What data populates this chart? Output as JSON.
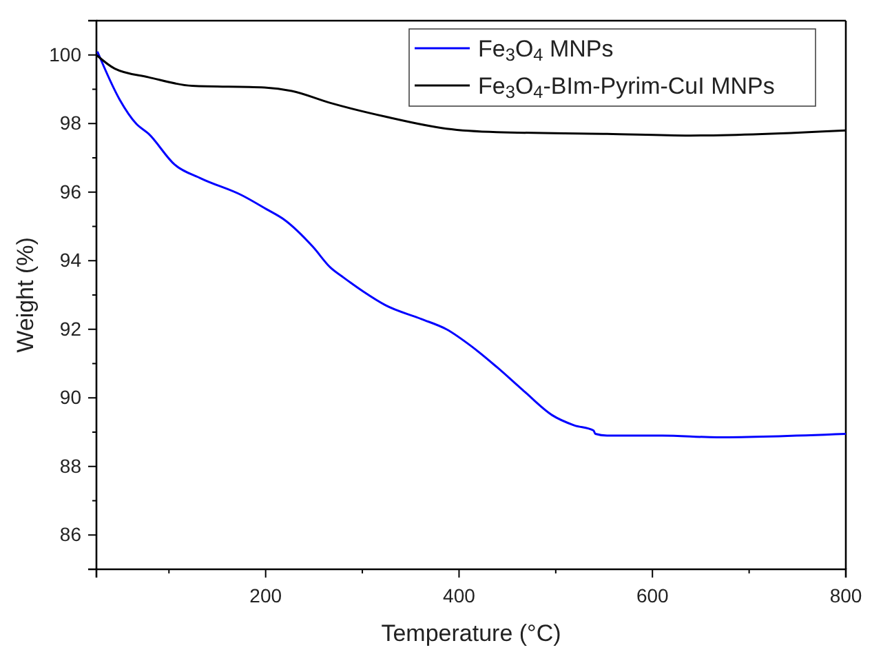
{
  "chart_data": {
    "type": "line",
    "xlabel": "Temperature (°C)",
    "ylabel": "Weight (%)",
    "xlim": [
      25,
      800
    ],
    "ylim": [
      85,
      101
    ],
    "xticks": [
      200,
      400,
      600,
      800
    ],
    "yticks": [
      86,
      88,
      90,
      92,
      94,
      96,
      98,
      100
    ],
    "legend": "top right",
    "line_style": "solid",
    "marker": "none",
    "grid": false,
    "series": [
      {
        "name": "Fe$_{3}$O$_{4}$ MNPs",
        "color": "#0000ff",
        "x": [
          26,
          49,
          66,
          79,
          106,
          133,
          176,
          201,
          219,
          249,
          267,
          281,
          301,
          324,
          361,
          387,
          413,
          439,
          467,
          496,
          519,
          539,
          541,
          553,
          610,
          667,
          800
        ],
        "values": [
          100.1,
          98.7,
          98.0,
          97.7,
          96.8,
          96.4,
          95.9,
          95.5,
          95.2,
          94.4,
          93.8,
          93.5,
          93.1,
          92.7,
          92.3,
          92.0,
          91.5,
          90.9,
          90.2,
          89.5,
          89.2,
          89.05,
          88.95,
          88.9,
          88.9,
          88.85,
          88.95
        ]
      },
      {
        "name": "Fe$_{3}$O$_{4}$-BIm-Pyrim-CuI MNPs",
        "color": "#000000",
        "x": [
          25,
          44,
          79,
          124,
          199,
          227,
          267,
          324,
          387,
          439,
          553,
          639,
          800
        ],
        "values": [
          100.0,
          99.6,
          99.35,
          99.1,
          99.05,
          98.95,
          98.6,
          98.2,
          97.85,
          97.75,
          97.7,
          97.65,
          97.8
        ]
      }
    ]
  }
}
